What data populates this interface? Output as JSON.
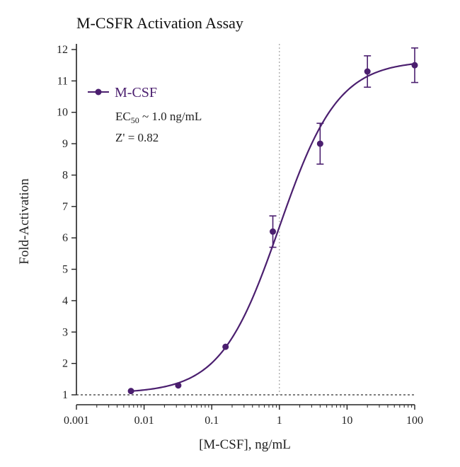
{
  "chart_data": {
    "type": "scatter",
    "title": "M-CSFR Activation Assay",
    "xlabel": "[M-CSF], ng/mL",
    "ylabel": "Fold-Activation",
    "xscale": "log",
    "xlim": [
      0.001,
      100
    ],
    "ylim": [
      1,
      12
    ],
    "xticks": [
      0.001,
      0.01,
      0.1,
      1,
      10,
      100
    ],
    "xtick_labels": [
      "0.001",
      "0.01",
      "0.1",
      "1",
      "10",
      "100"
    ],
    "yticks": [
      1,
      2,
      3,
      4,
      5,
      6,
      7,
      8,
      9,
      10,
      11,
      12
    ],
    "ytick_labels": [
      "1",
      "2",
      "3",
      "4",
      "5",
      "6",
      "7",
      "8",
      "9",
      "10",
      "11",
      "12"
    ],
    "reference_lines": {
      "vertical_x": 1,
      "horizontal_y": 1
    },
    "series": [
      {
        "name": "M-CSF",
        "color": "#4b1f6f",
        "x": [
          0.0064,
          0.032,
          0.16,
          0.8,
          4,
          20,
          100
        ],
        "y": [
          1.12,
          1.3,
          2.53,
          6.2,
          9.0,
          11.3,
          11.5
        ],
        "yerr": [
          0,
          0,
          0,
          0.5,
          0.65,
          0.5,
          0.55
        ],
        "fit": {
          "model": "4PL",
          "bottom": 1.05,
          "top": 11.65,
          "ec50": 1.0,
          "hill": 1.0
        }
      }
    ],
    "legend": {
      "position": "top-left",
      "entries": [
        "M-CSF"
      ]
    },
    "annotations": {
      "ec50_prefix": "EC",
      "ec50_sub": "50",
      "ec50_value": " ~ 1.0 ng/mL",
      "z_prime": "Z' = 0.82"
    }
  }
}
